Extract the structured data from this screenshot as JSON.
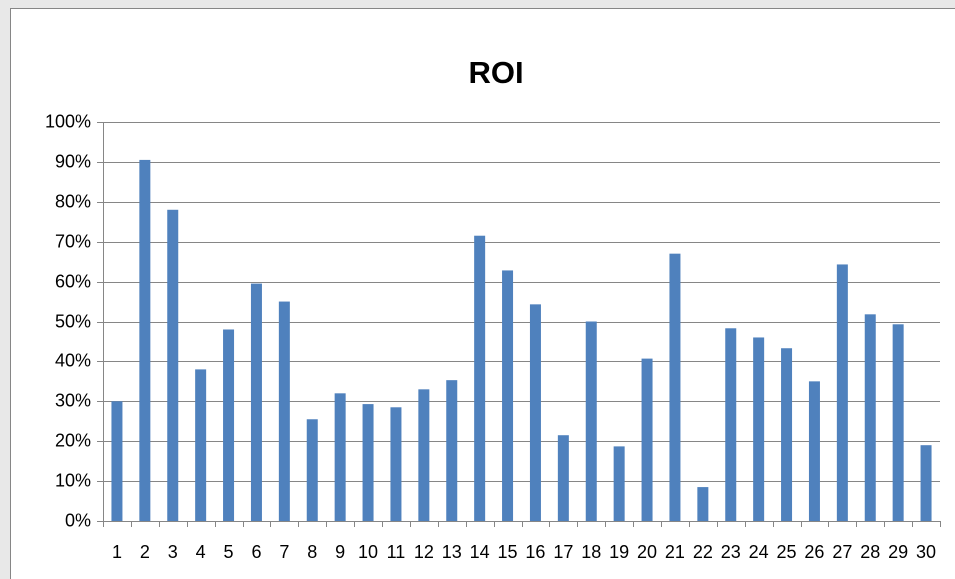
{
  "chart_data": {
    "type": "bar",
    "title": "ROI",
    "categories": [
      "1",
      "2",
      "3",
      "4",
      "5",
      "6",
      "7",
      "8",
      "9",
      "10",
      "11",
      "12",
      "13",
      "14",
      "15",
      "16",
      "17",
      "18",
      "19",
      "20",
      "21",
      "22",
      "23",
      "24",
      "25",
      "26",
      "27",
      "28",
      "29",
      "30"
    ],
    "values": [
      30,
      90.5,
      78,
      38,
      48,
      59.5,
      55,
      25.5,
      32,
      29.3,
      28.5,
      33,
      35.3,
      71.5,
      62.8,
      54.3,
      21.5,
      50,
      18.7,
      40.7,
      67,
      8.5,
      48.3,
      46,
      43.3,
      35,
      64.3,
      51.8,
      49.3,
      19
    ],
    "color": "#4f81bd",
    "ylim": [
      0,
      100
    ],
    "yticks": [
      {
        "value": 0,
        "label": "0%"
      },
      {
        "value": 10,
        "label": "10%"
      },
      {
        "value": 20,
        "label": "20%"
      },
      {
        "value": 30,
        "label": "30%"
      },
      {
        "value": 40,
        "label": "40%"
      },
      {
        "value": 50,
        "label": "50%"
      },
      {
        "value": 60,
        "label": "60%"
      },
      {
        "value": 70,
        "label": "70%"
      },
      {
        "value": 80,
        "label": "80%"
      },
      {
        "value": 90,
        "label": "90%"
      },
      {
        "value": 100,
        "label": "100%"
      }
    ],
    "grid": true
  }
}
